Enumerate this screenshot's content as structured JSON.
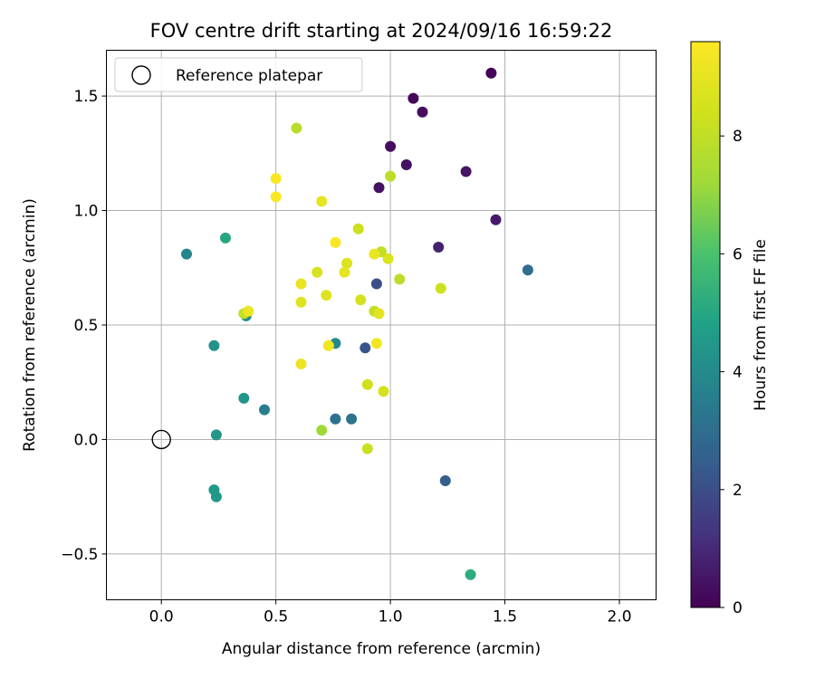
{
  "chart_data": {
    "type": "scatter",
    "title": "FOV centre drift starting at 2024/09/16 16:59:22",
    "xlabel": "Angular distance from reference (arcmin)",
    "ylabel": "Rotation from reference (arcmin)",
    "xlim": [
      -0.24,
      2.16
    ],
    "ylim": [
      -0.7,
      1.7
    ],
    "xticks": [
      0.0,
      0.5,
      1.0,
      1.5,
      2.0
    ],
    "xtick_labels": [
      "0.0",
      "0.5",
      "1.0",
      "1.5",
      "2.0"
    ],
    "yticks": [
      -0.5,
      0.0,
      0.5,
      1.0,
      1.5
    ],
    "ytick_labels": [
      "−0.5",
      "0.0",
      "0.5",
      "1.0",
      "1.5"
    ],
    "grid": true,
    "legend": {
      "placement": "top-left",
      "entries": [
        "Reference platepar"
      ]
    },
    "reference_point": {
      "name": "Reference platepar",
      "x": 0.0,
      "y": 0.0
    },
    "colorbar": {
      "label": "Hours from first FF file",
      "colormap": "viridis",
      "range": [
        0,
        9.6
      ],
      "ticks": [
        0,
        2,
        4,
        6,
        8
      ],
      "tick_labels": [
        "0",
        "2",
        "4",
        "6",
        "8"
      ]
    },
    "points": [
      {
        "x": 1.44,
        "y": 1.6,
        "c": 0.1
      },
      {
        "x": 1.1,
        "y": 1.49,
        "c": 0.2
      },
      {
        "x": 1.14,
        "y": 1.43,
        "c": 0.3
      },
      {
        "x": 1.0,
        "y": 1.28,
        "c": 0.3
      },
      {
        "x": 1.07,
        "y": 1.2,
        "c": 0.4
      },
      {
        "x": 0.95,
        "y": 1.1,
        "c": 0.4
      },
      {
        "x": 1.33,
        "y": 1.17,
        "c": 0.5
      },
      {
        "x": 1.46,
        "y": 0.96,
        "c": 0.6
      },
      {
        "x": 1.21,
        "y": 0.84,
        "c": 0.8
      },
      {
        "x": 0.94,
        "y": 0.68,
        "c": 2.0
      },
      {
        "x": 0.89,
        "y": 0.4,
        "c": 2.2
      },
      {
        "x": 1.24,
        "y": -0.18,
        "c": 2.5
      },
      {
        "x": 1.6,
        "y": 0.74,
        "c": 3.0
      },
      {
        "x": 0.76,
        "y": 0.09,
        "c": 3.2
      },
      {
        "x": 0.83,
        "y": 0.09,
        "c": 3.2
      },
      {
        "x": 0.45,
        "y": 0.13,
        "c": 3.6
      },
      {
        "x": 0.11,
        "y": 0.81,
        "c": 3.8
      },
      {
        "x": 0.37,
        "y": 0.54,
        "c": 4.0
      },
      {
        "x": 0.76,
        "y": 0.42,
        "c": 4.0
      },
      {
        "x": 0.23,
        "y": 0.41,
        "c": 4.3
      },
      {
        "x": 0.36,
        "y": 0.18,
        "c": 4.4
      },
      {
        "x": 0.24,
        "y": 0.02,
        "c": 4.4
      },
      {
        "x": 0.23,
        "y": -0.22,
        "c": 4.5
      },
      {
        "x": 0.24,
        "y": -0.25,
        "c": 4.5
      },
      {
        "x": 0.28,
        "y": 0.88,
        "c": 5.0
      },
      {
        "x": 1.35,
        "y": -0.59,
        "c": 5.2
      },
      {
        "x": 0.7,
        "y": 0.04,
        "c": 7.2
      },
      {
        "x": 0.59,
        "y": 1.36,
        "c": 7.8
      },
      {
        "x": 1.0,
        "y": 1.15,
        "c": 7.9
      },
      {
        "x": 1.04,
        "y": 0.7,
        "c": 7.9
      },
      {
        "x": 0.96,
        "y": 0.82,
        "c": 8.0
      },
      {
        "x": 0.93,
        "y": 0.56,
        "c": 8.0
      },
      {
        "x": 0.36,
        "y": 0.55,
        "c": 8.0
      },
      {
        "x": 0.9,
        "y": -0.04,
        "c": 8.2
      },
      {
        "x": 1.22,
        "y": 0.66,
        "c": 8.3
      },
      {
        "x": 0.86,
        "y": 0.92,
        "c": 8.3
      },
      {
        "x": 0.9,
        "y": 0.24,
        "c": 8.4
      },
      {
        "x": 0.87,
        "y": 0.61,
        "c": 8.5
      },
      {
        "x": 0.97,
        "y": 0.21,
        "c": 8.5
      },
      {
        "x": 0.68,
        "y": 0.73,
        "c": 8.6
      },
      {
        "x": 0.81,
        "y": 0.77,
        "c": 8.7
      },
      {
        "x": 0.99,
        "y": 0.79,
        "c": 8.7
      },
      {
        "x": 0.61,
        "y": 0.6,
        "c": 8.8
      },
      {
        "x": 0.72,
        "y": 0.63,
        "c": 8.8
      },
      {
        "x": 0.95,
        "y": 0.55,
        "c": 8.9
      },
      {
        "x": 0.8,
        "y": 0.73,
        "c": 9.0
      },
      {
        "x": 0.7,
        "y": 1.04,
        "c": 9.0
      },
      {
        "x": 0.61,
        "y": 0.68,
        "c": 9.0
      },
      {
        "x": 0.93,
        "y": 0.81,
        "c": 9.1
      },
      {
        "x": 0.38,
        "y": 0.56,
        "c": 9.2
      },
      {
        "x": 0.61,
        "y": 0.33,
        "c": 9.2
      },
      {
        "x": 0.94,
        "y": 0.42,
        "c": 9.3
      },
      {
        "x": 0.73,
        "y": 0.41,
        "c": 9.3
      },
      {
        "x": 0.76,
        "y": 0.86,
        "c": 9.5
      },
      {
        "x": 0.5,
        "y": 1.14,
        "c": 9.5
      },
      {
        "x": 0.5,
        "y": 1.06,
        "c": 9.5
      }
    ]
  }
}
